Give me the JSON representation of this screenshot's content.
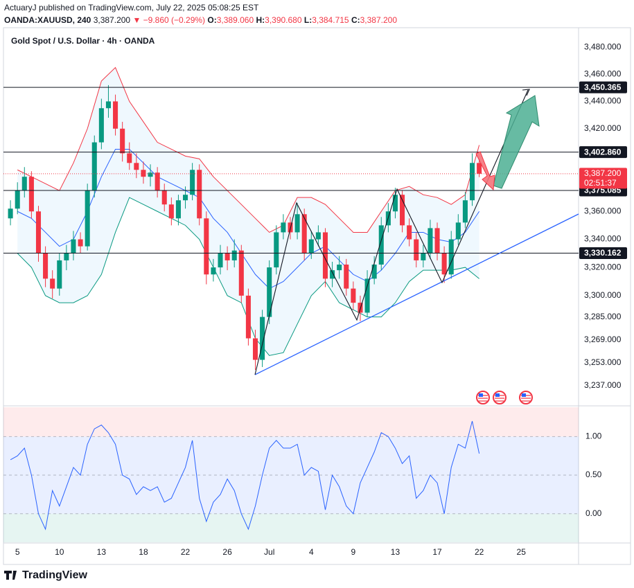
{
  "header": {
    "published": "ActuaryJ published on TradingView.com, July 22, 2025 05:08:25 EST",
    "symbol": "OANDA:XAUUSD, 240",
    "price": "3,387.200",
    "change": "▼ −9.860 (−0.29%)",
    "open_label": "O:",
    "open": "3,389.060",
    "high_label": "H:",
    "high": "3,390.680",
    "low_label": "L:",
    "low": "3,384.715",
    "close_label": "C:",
    "close": "3,387.200"
  },
  "chart_data": [
    {
      "type": "candlestick",
      "title": "Gold Spot / U.S. Dollar · 4h · OANDA",
      "log_scale": true,
      "up_color": "#089981",
      "down_color": "#f23645",
      "x": [
        -0.5,
        0,
        0.5,
        1,
        1.5,
        2,
        2.5,
        3,
        3.5,
        4,
        4.5,
        5,
        5.5,
        6,
        6.5,
        7,
        7.5,
        8,
        8.5,
        9,
        9.5,
        10,
        10.5,
        11,
        11.5,
        12,
        12.5,
        13,
        13.5,
        14,
        14.5,
        15,
        15.5,
        16,
        16.5,
        17,
        17.5,
        18,
        18.5,
        19,
        19.5,
        20,
        20.5,
        21,
        21.5,
        22,
        22.5,
        23,
        23.5,
        24,
        24.5,
        25,
        25.5,
        26,
        26.5,
        27,
        27.5,
        28,
        28.5,
        29,
        29.5,
        30,
        30.5,
        31,
        31.5,
        32,
        32.5,
        33
      ],
      "ohlc": [
        [
          3355,
          3368,
          3350,
          3362
        ],
        [
          3362,
          3381,
          3358,
          3375
        ],
        [
          3375,
          3392,
          3370,
          3385
        ],
        [
          3385,
          3389,
          3355,
          3360
        ],
        [
          3360,
          3364,
          3324,
          3330
        ],
        [
          3330,
          3335,
          3306,
          3312
        ],
        [
          3312,
          3318,
          3298,
          3305
        ],
        [
          3305,
          3330,
          3300,
          3325
        ],
        [
          3325,
          3336,
          3318,
          3330
        ],
        [
          3330,
          3346,
          3325,
          3340
        ],
        [
          3340,
          3345,
          3330,
          3335
        ],
        [
          3335,
          3380,
          3332,
          3375
        ],
        [
          3375,
          3415,
          3370,
          3410
        ],
        [
          3410,
          3442,
          3405,
          3435
        ],
        [
          3435,
          3452,
          3428,
          3440
        ],
        [
          3440,
          3445,
          3415,
          3420
        ],
        [
          3420,
          3425,
          3396,
          3402
        ],
        [
          3402,
          3410,
          3390,
          3395
        ],
        [
          3395,
          3402,
          3384,
          3390
        ],
        [
          3390,
          3396,
          3380,
          3385
        ],
        [
          3385,
          3394,
          3378,
          3388
        ],
        [
          3388,
          3392,
          3370,
          3375
        ],
        [
          3375,
          3380,
          3360,
          3365
        ],
        [
          3365,
          3370,
          3350,
          3355
        ],
        [
          3355,
          3372,
          3350,
          3368
        ],
        [
          3368,
          3378,
          3362,
          3372
        ],
        [
          3372,
          3395,
          3368,
          3390
        ],
        [
          3390,
          3394,
          3350,
          3355
        ],
        [
          3355,
          3360,
          3308,
          3315
        ],
        [
          3315,
          3326,
          3310,
          3320
        ],
        [
          3320,
          3336,
          3315,
          3330
        ],
        [
          3330,
          3335,
          3318,
          3325
        ],
        [
          3325,
          3340,
          3320,
          3332
        ],
        [
          3332,
          3336,
          3295,
          3300
        ],
        [
          3300,
          3305,
          3265,
          3270
        ],
        [
          3270,
          3276,
          3248,
          3255
        ],
        [
          3255,
          3290,
          3250,
          3285
        ],
        [
          3285,
          3325,
          3280,
          3320
        ],
        [
          3320,
          3350,
          3315,
          3345
        ],
        [
          3345,
          3358,
          3340,
          3352
        ],
        [
          3352,
          3356,
          3340,
          3345
        ],
        [
          3345,
          3366,
          3340,
          3358
        ],
        [
          3358,
          3362,
          3325,
          3330
        ],
        [
          3330,
          3346,
          3326,
          3340
        ],
        [
          3340,
          3350,
          3335,
          3345
        ],
        [
          3345,
          3348,
          3306,
          3312
        ],
        [
          3312,
          3324,
          3306,
          3318
        ],
        [
          3318,
          3328,
          3312,
          3322
        ],
        [
          3322,
          3326,
          3300,
          3305
        ],
        [
          3305,
          3310,
          3290,
          3295
        ],
        [
          3295,
          3300,
          3282,
          3288
        ],
        [
          3288,
          3318,
          3285,
          3312
        ],
        [
          3312,
          3328,
          3308,
          3322
        ],
        [
          3322,
          3356,
          3318,
          3350
        ],
        [
          3350,
          3366,
          3345,
          3360
        ],
        [
          3360,
          3377,
          3355,
          3372
        ],
        [
          3372,
          3375,
          3345,
          3350
        ],
        [
          3350,
          3355,
          3335,
          3340
        ],
        [
          3340,
          3345,
          3320,
          3325
        ],
        [
          3325,
          3336,
          3320,
          3330
        ],
        [
          3330,
          3354,
          3326,
          3348
        ],
        [
          3348,
          3352,
          3325,
          3330
        ],
        [
          3330,
          3335,
          3309,
          3315
        ],
        [
          3315,
          3346,
          3312,
          3340
        ],
        [
          3340,
          3358,
          3336,
          3352
        ],
        [
          3352,
          3374,
          3348,
          3368
        ],
        [
          3368,
          3402,
          3364,
          3395
        ],
        [
          3395,
          3398,
          3384.715,
          3387.2
        ]
      ],
      "band_x": [
        0,
        1,
        2,
        3,
        4,
        5,
        6,
        7,
        8,
        9,
        10,
        11,
        12,
        13,
        14,
        15,
        16,
        17,
        18,
        19,
        20,
        21,
        22,
        23,
        24,
        25,
        26,
        27,
        28,
        29,
        30,
        31,
        32,
        33
      ],
      "bands": [
        {
          "color": "#f23645",
          "values": [
            3390,
            3385,
            3380,
            3375,
            3395,
            3420,
            3455,
            3465,
            3440,
            3425,
            3410,
            3405,
            3400,
            3398,
            3385,
            3375,
            3365,
            3355,
            3345,
            3350,
            3370,
            3370,
            3365,
            3355,
            3345,
            3345,
            3360,
            3375,
            3378,
            3372,
            3370,
            3365,
            3372,
            3408
          ]
        },
        {
          "color": "#2962ff",
          "values": [
            3360,
            3355,
            3345,
            3335,
            3340,
            3360,
            3385,
            3405,
            3405,
            3395,
            3385,
            3380,
            3375,
            3370,
            3355,
            3345,
            3330,
            3315,
            3305,
            3310,
            3320,
            3330,
            3335,
            3325,
            3315,
            3310,
            3318,
            3330,
            3345,
            3345,
            3340,
            3338,
            3345,
            3360
          ]
        },
        {
          "color": "#089981",
          "values": [
            3330,
            3320,
            3300,
            3295,
            3295,
            3300,
            3315,
            3345,
            3370,
            3365,
            3360,
            3355,
            3350,
            3340,
            3320,
            3300,
            3295,
            3270,
            3258,
            3260,
            3280,
            3300,
            3310,
            3295,
            3290,
            3285,
            3285,
            3295,
            3310,
            3318,
            3318,
            3318,
            3320,
            3312
          ]
        }
      ],
      "ylim": [
        3230,
        3490
      ],
      "yticks": [
        {
          "value": 3480,
          "label": "3,480.000"
        },
        {
          "value": 3460,
          "label": "3,460.000"
        },
        {
          "value": 3440,
          "label": "3,440.000"
        },
        {
          "value": 3420,
          "label": "3,420.000"
        },
        {
          "value": 3360,
          "label": "3,360.000"
        },
        {
          "value": 3340,
          "label": "3,340.000"
        },
        {
          "value": 3320,
          "label": "3,320.000"
        },
        {
          "value": 3300,
          "label": "3,300.000"
        },
        {
          "value": 3285,
          "label": "3,285.000"
        },
        {
          "value": 3269,
          "label": "3,269.000"
        },
        {
          "value": 3253,
          "label": "3,253.000"
        },
        {
          "value": 3237,
          "label": "3,237.000"
        }
      ],
      "levels": [
        {
          "value": 3450.365,
          "label": "3,450.365"
        },
        {
          "value": 3402.86,
          "label": "3,402.860"
        },
        {
          "value": 3375.085,
          "label": "3,375.085"
        },
        {
          "value": 3330.162,
          "label": "3,330.162"
        }
      ],
      "last_price": {
        "value": 3387.2,
        "label": "3,387.200",
        "countdown": "02:51:37"
      },
      "xlim": [
        -1,
        40.1
      ],
      "xticks": [
        {
          "value": 0,
          "label": "5"
        },
        {
          "value": 3,
          "label": "10"
        },
        {
          "value": 6,
          "label": "13"
        },
        {
          "value": 9,
          "label": "18"
        },
        {
          "value": 12,
          "label": "22"
        },
        {
          "value": 15,
          "label": "26"
        },
        {
          "value": 18,
          "label": "Jul"
        },
        {
          "value": 21,
          "label": "4"
        },
        {
          "value": 24,
          "label": "9"
        },
        {
          "value": 27,
          "label": "13"
        },
        {
          "value": 30,
          "label": "17"
        },
        {
          "value": 33,
          "label": "22"
        },
        {
          "value": 36,
          "label": "25"
        }
      ]
    },
    {
      "type": "line",
      "color": "#2962ff",
      "x": [
        -0.5,
        0,
        0.5,
        1,
        1.5,
        2,
        2.5,
        3,
        3.5,
        4,
        4.5,
        5,
        5.5,
        6,
        6.5,
        7,
        7.5,
        8,
        8.5,
        9,
        9.5,
        10,
        10.5,
        11,
        11.5,
        12,
        12.5,
        13,
        13.5,
        14,
        14.5,
        15,
        15.5,
        16,
        16.5,
        17,
        17.5,
        18,
        18.5,
        19,
        19.5,
        20,
        20.5,
        21,
        21.5,
        22,
        22.5,
        23,
        23.5,
        24,
        24.5,
        25,
        25.5,
        26,
        26.5,
        27,
        27.5,
        28,
        28.5,
        29,
        29.5,
        30,
        30.5,
        31,
        31.5,
        32,
        32.5,
        33
      ],
      "values": [
        0.7,
        0.75,
        0.85,
        0.5,
        0.0,
        -0.2,
        0.3,
        0.1,
        0.35,
        0.6,
        0.5,
        0.9,
        1.1,
        1.15,
        1.05,
        0.9,
        0.5,
        0.45,
        0.25,
        0.35,
        0.3,
        0.35,
        0.15,
        0.2,
        0.4,
        0.6,
        0.95,
        0.2,
        -0.1,
        0.15,
        0.25,
        0.45,
        0.3,
        0.0,
        -0.2,
        0.1,
        0.5,
        0.85,
        0.95,
        0.85,
        0.85,
        0.9,
        0.5,
        0.6,
        0.55,
        0.05,
        0.5,
        0.35,
        0.1,
        0.0,
        0.4,
        0.6,
        0.8,
        1.05,
        1.0,
        0.85,
        0.65,
        0.75,
        0.2,
        0.3,
        0.5,
        0.4,
        0.0,
        0.6,
        0.9,
        0.85,
        1.2,
        0.78
      ],
      "ylim": [
        -0.37,
        1.38
      ],
      "yticks": [
        {
          "value": 1,
          "label": "1.00"
        },
        {
          "value": 0.5,
          "label": "0.50"
        },
        {
          "value": 0,
          "label": "0.00"
        }
      ]
    }
  ],
  "footer": {
    "brand": "TradingView"
  }
}
